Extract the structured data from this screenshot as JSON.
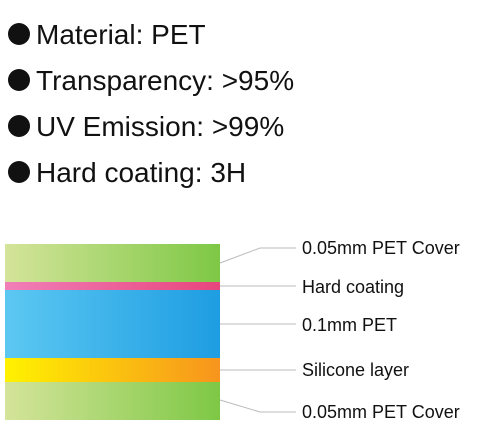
{
  "specs": [
    {
      "text": "Material: PET"
    },
    {
      "text": "Transparency: >95%"
    },
    {
      "text": "UV Emission: >99%"
    },
    {
      "text": "Hard coating: 3H"
    }
  ],
  "layers": [
    {
      "label": "0.05mm PET Cover",
      "color_start": "#d4e49a",
      "color_end": "#7ec845"
    },
    {
      "label": "Hard coating",
      "color_start": "#f07fb8",
      "color_end": "#e8457d"
    },
    {
      "label": "0.1mm PET",
      "color_start": "#5cc8f2",
      "color_end": "#1e9de2"
    },
    {
      "label": "Silicone layer",
      "color_start": "#fff200",
      "color_end": "#f7941d"
    },
    {
      "label": "0.05mm PET Cover",
      "color_start": "#d4e49a",
      "color_end": "#7ec845"
    }
  ],
  "colors": {
    "text": "#111111",
    "leader_line": "#bbbbbb"
  }
}
